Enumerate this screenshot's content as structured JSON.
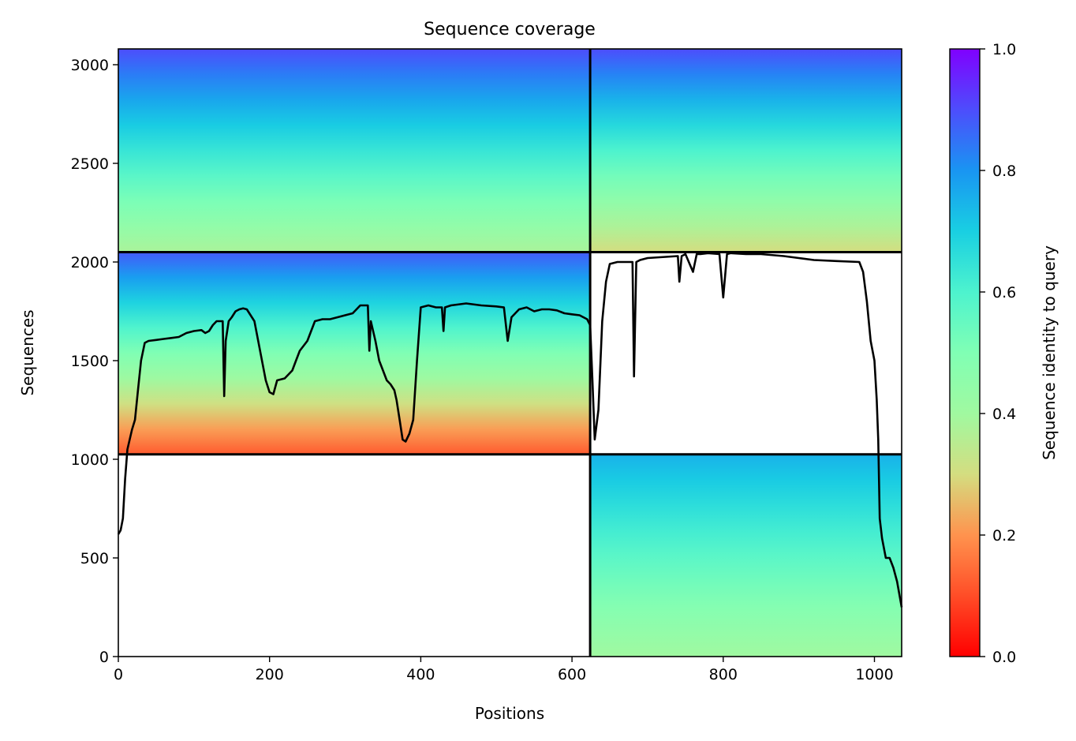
{
  "chart_data": {
    "type": "heatmap",
    "title": "Sequence coverage",
    "xlabel": "Positions",
    "ylabel": "Sequences",
    "xlim": [
      0,
      1036
    ],
    "ylim": [
      0,
      3080
    ],
    "x_ticks": [
      0,
      200,
      400,
      600,
      800,
      1000
    ],
    "y_ticks": [
      0,
      500,
      1000,
      1500,
      2000,
      2500,
      3000
    ],
    "colorbar": {
      "label": "Sequence identity to query",
      "range": [
        0,
        1
      ],
      "ticks": [
        "0.0",
        "0.2",
        "0.4",
        "0.6",
        "0.8",
        "1.0"
      ],
      "colormap": "rainbow_r"
    },
    "blocks": [
      {
        "name": "chain-A-paired",
        "x": [
          0,
          624
        ],
        "y": [
          2050,
          3080
        ],
        "identity_bottom": 0.38,
        "identity_top": 0.9
      },
      {
        "name": "chain-B-paired",
        "x": [
          624,
          1036
        ],
        "y": [
          2050,
          3080
        ],
        "identity_bottom": 0.3,
        "identity_top": 0.9
      },
      {
        "name": "chain-A-unpaired",
        "x": [
          0,
          624
        ],
        "y": [
          1025,
          2050
        ],
        "identity_bottom": 0.12,
        "identity_top": 0.88
      },
      {
        "name": "chain-B-unpaired",
        "x": [
          624,
          1036
        ],
        "y": [
          0,
          1025
        ],
        "identity_bottom": 0.4,
        "identity_top": 0.75
      }
    ],
    "block_dividers": {
      "x": 624,
      "y": [
        1025,
        2050
      ]
    },
    "coverage_line": {
      "x": [
        0,
        3,
        6,
        9,
        12,
        15,
        18,
        22,
        26,
        30,
        35,
        40,
        50,
        60,
        70,
        80,
        90,
        100,
        110,
        115,
        120,
        125,
        130,
        138,
        140,
        142,
        146,
        150,
        155,
        160,
        165,
        170,
        180,
        185,
        190,
        195,
        200,
        205,
        210,
        220,
        225,
        230,
        235,
        240,
        250,
        260,
        270,
        280,
        290,
        300,
        310,
        320,
        330,
        332,
        334,
        340,
        345,
        350,
        355,
        360,
        365,
        368,
        372,
        376,
        380,
        385,
        390,
        395,
        400,
        410,
        420,
        428,
        430,
        432,
        440,
        460,
        480,
        500,
        510,
        515,
        520,
        530,
        540,
        550,
        560,
        570,
        580,
        590,
        600,
        610,
        615,
        620,
        624,
        627,
        630,
        635,
        640,
        645,
        650,
        660,
        680,
        682,
        685,
        690,
        700,
        740,
        742,
        745,
        750,
        760,
        765,
        770,
        780,
        795,
        800,
        805,
        810,
        830,
        850,
        880,
        900,
        920,
        950,
        980,
        985,
        990,
        995,
        1000,
        1003,
        1005,
        1007,
        1010,
        1015,
        1020,
        1025,
        1030,
        1036
      ],
      "y": [
        620,
        640,
        700,
        900,
        1050,
        1100,
        1150,
        1200,
        1350,
        1500,
        1590,
        1600,
        1605,
        1610,
        1615,
        1620,
        1640,
        1650,
        1655,
        1640,
        1650,
        1680,
        1700,
        1700,
        1320,
        1600,
        1700,
        1720,
        1750,
        1760,
        1765,
        1760,
        1700,
        1600,
        1500,
        1400,
        1340,
        1330,
        1400,
        1410,
        1430,
        1450,
        1500,
        1550,
        1600,
        1700,
        1710,
        1710,
        1720,
        1730,
        1740,
        1780,
        1780,
        1550,
        1700,
        1600,
        1500,
        1450,
        1400,
        1380,
        1350,
        1300,
        1200,
        1100,
        1090,
        1130,
        1200,
        1500,
        1770,
        1780,
        1770,
        1770,
        1650,
        1770,
        1780,
        1790,
        1780,
        1775,
        1770,
        1600,
        1720,
        1760,
        1770,
        1750,
        1760,
        1760,
        1755,
        1740,
        1735,
        1730,
        1720,
        1710,
        1680,
        1400,
        1100,
        1250,
        1700,
        1900,
        1990,
        2000,
        2000,
        1420,
        2000,
        2010,
        2020,
        2030,
        1900,
        2030,
        2040,
        1950,
        2040,
        2040,
        2045,
        2040,
        1820,
        2040,
        2045,
        2040,
        2040,
        2030,
        2020,
        2010,
        2005,
        2000,
        1950,
        1800,
        1600,
        1500,
        1300,
        1100,
        700,
        600,
        500,
        500,
        450,
        380,
        250
      ]
    }
  }
}
